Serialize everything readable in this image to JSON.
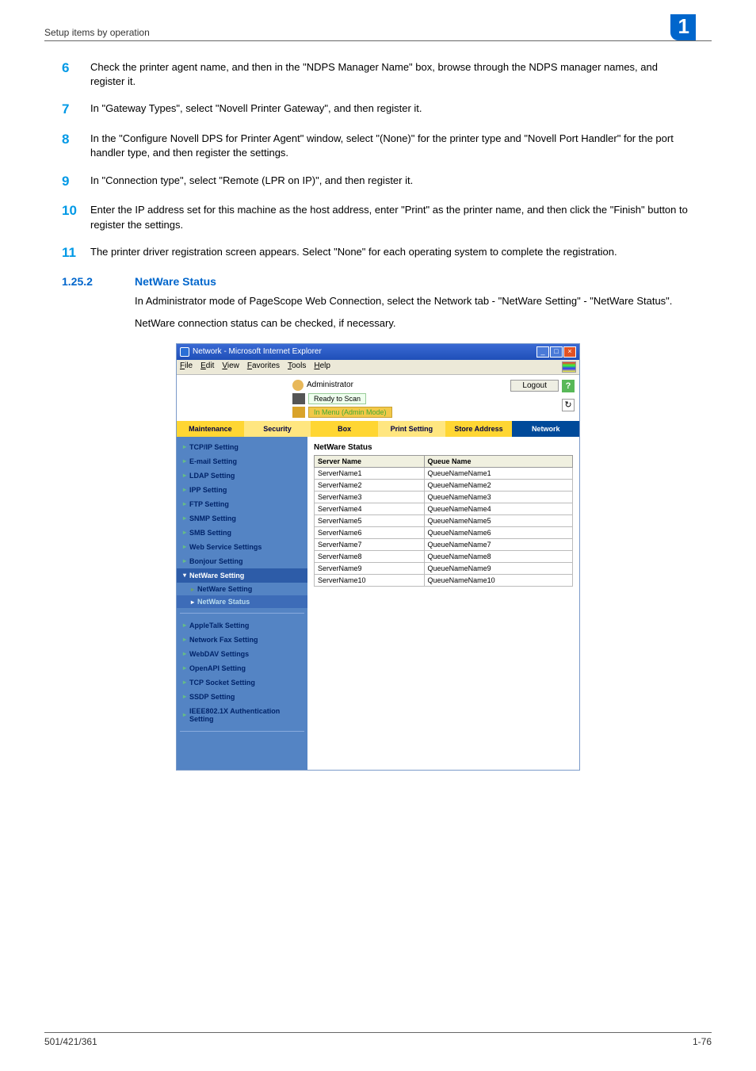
{
  "header": {
    "breadcrumb": "Setup items by operation",
    "chapter_badge": "1"
  },
  "steps": [
    {
      "num": "6",
      "text": "Check the printer agent name, and then in the \"NDPS Manager Name\" box, browse through the NDPS manager names, and register it."
    },
    {
      "num": "7",
      "text": "In \"Gateway Types\", select \"Novell Printer Gateway\", and then register it."
    },
    {
      "num": "8",
      "text": "In the \"Configure Novell DPS for Printer Agent\" window, select \"(None)\" for the printer type and \"Novell Port Handler\" for the port handler type, and then register the settings."
    },
    {
      "num": "9",
      "text": "In \"Connection type\", select \"Remote (LPR on IP)\", and then register it."
    },
    {
      "num": "10",
      "text": "Enter the IP address set for this machine as the host address, enter \"Print\" as the printer name, and then click the \"Finish\" button to register the settings."
    },
    {
      "num": "11",
      "text": "The printer driver registration screen appears. Select \"None\" for each operating system to complete the registration."
    }
  ],
  "section": {
    "num": "1.25.2",
    "title": "NetWare Status",
    "para1": "In Administrator mode of PageScope Web Connection, select the Network tab - \"NetWare Setting\" - \"NetWare Status\".",
    "para2": "NetWare connection status can be checked, if necessary."
  },
  "browser": {
    "title": "Network - Microsoft Internet Explorer",
    "menus": [
      "File",
      "Edit",
      "View",
      "Favorites",
      "Tools",
      "Help"
    ],
    "admin_label": "Administrator",
    "status1": "Ready to Scan",
    "status2": "In Menu (Admin Mode)",
    "logout": "Logout",
    "help": "?",
    "refresh": "↻",
    "tabs": [
      {
        "label": "Maintenance",
        "class": "yellow"
      },
      {
        "label": "Security",
        "class": "yellow dim"
      },
      {
        "label": "Box",
        "class": "yellow"
      },
      {
        "label": "Print Setting",
        "class": "yellow dim"
      },
      {
        "label": "Store Address",
        "class": "yellow"
      },
      {
        "label": "Network",
        "class": "active"
      }
    ],
    "sidebar": [
      {
        "label": "TCP/IP Setting",
        "type": "item"
      },
      {
        "label": "E-mail Setting",
        "type": "item"
      },
      {
        "label": "LDAP Setting",
        "type": "item"
      },
      {
        "label": "IPP Setting",
        "type": "item"
      },
      {
        "label": "FTP Setting",
        "type": "item"
      },
      {
        "label": "SNMP Setting",
        "type": "item"
      },
      {
        "label": "SMB Setting",
        "type": "item"
      },
      {
        "label": "Web Service Settings",
        "type": "item"
      },
      {
        "label": "Bonjour Setting",
        "type": "item"
      },
      {
        "label": "NetWare Setting",
        "type": "expanded"
      },
      {
        "label": "NetWare Setting",
        "type": "sub"
      },
      {
        "label": "NetWare Status",
        "type": "sub current"
      },
      {
        "label": "AppleTalk Setting",
        "type": "item"
      },
      {
        "label": "Network Fax Setting",
        "type": "item"
      },
      {
        "label": "WebDAV Settings",
        "type": "item"
      },
      {
        "label": "OpenAPI Setting",
        "type": "item"
      },
      {
        "label": "TCP Socket Setting",
        "type": "item"
      },
      {
        "label": "SSDP Setting",
        "type": "item"
      },
      {
        "label": "IEEE802.1X Authentication Setting",
        "type": "item"
      }
    ],
    "main_title": "NetWare Status",
    "table": {
      "col1": "Server Name",
      "col2": "Queue Name",
      "rows": [
        [
          "ServerName1",
          "QueueNameName1"
        ],
        [
          "ServerName2",
          "QueueNameName2"
        ],
        [
          "ServerName3",
          "QueueNameName3"
        ],
        [
          "ServerName4",
          "QueueNameName4"
        ],
        [
          "ServerName5",
          "QueueNameName5"
        ],
        [
          "ServerName6",
          "QueueNameName6"
        ],
        [
          "ServerName7",
          "QueueNameName7"
        ],
        [
          "ServerName8",
          "QueueNameName8"
        ],
        [
          "ServerName9",
          "QueueNameName9"
        ],
        [
          "ServerName10",
          "QueueNameName10"
        ]
      ]
    }
  },
  "footer": {
    "left": "501/421/361",
    "right": "1-76"
  }
}
